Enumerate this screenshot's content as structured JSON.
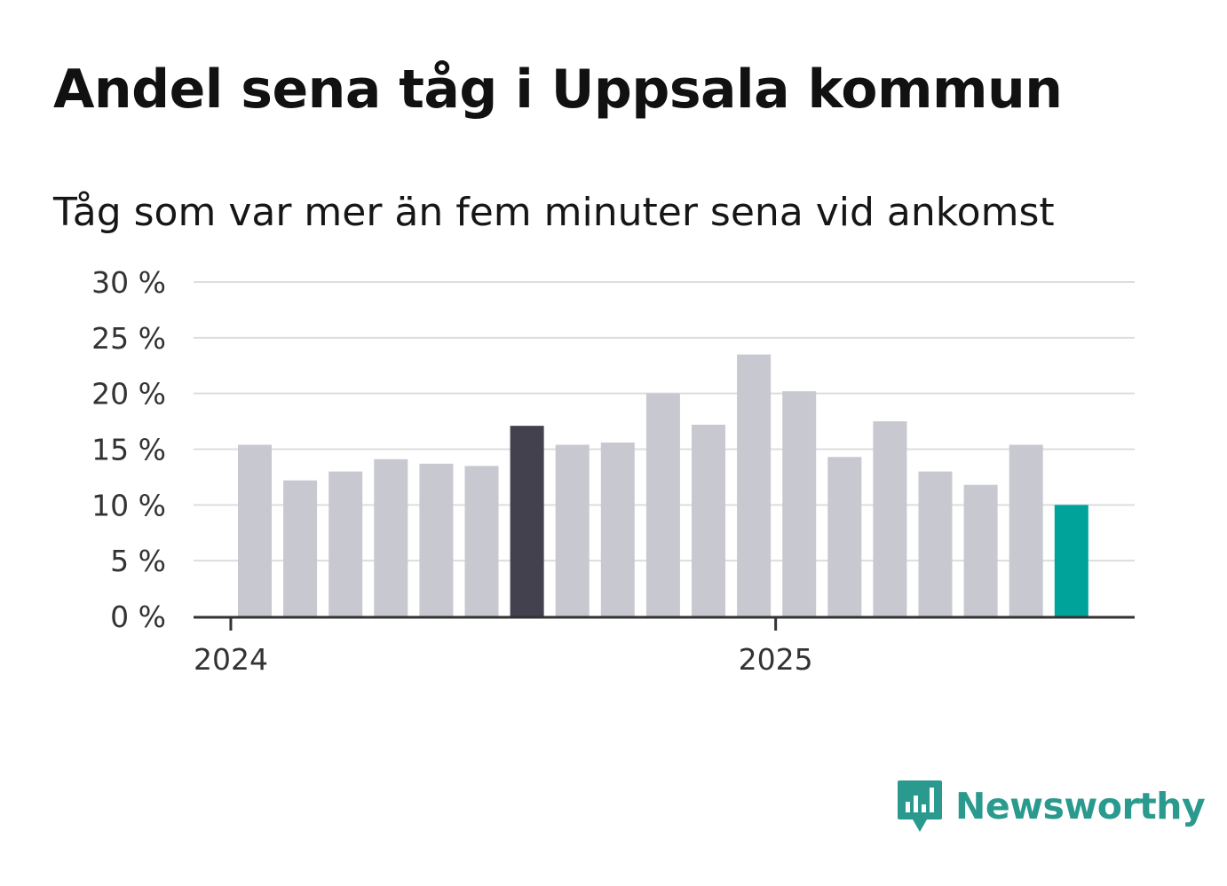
{
  "header": {
    "title": "Andel sena tåg i Uppsala kommun",
    "subtitle": "Tåg som var mer än fem minuter sena vid ankomst"
  },
  "brand": {
    "name": "Newsworthy",
    "color": "#2a9a8f",
    "icon": "chart-bubble-icon"
  },
  "colors": {
    "bar": "#c8c8d0",
    "highlight_previous_year": "#43414e",
    "highlight_latest": "#00a39a",
    "grid": "#dddddd",
    "axis": "#333333"
  },
  "chart_data": {
    "type": "bar",
    "x_ticks": [
      "2024",
      "2025"
    ],
    "y_ticks": [
      "0 %",
      "5 %",
      "10 %",
      "15 %",
      "20 %",
      "25 %",
      "30 %"
    ],
    "ylim": [
      0,
      30
    ],
    "grid": true,
    "categories": [
      "2024-01",
      "2024-02",
      "2024-03",
      "2024-04",
      "2024-05",
      "2024-06",
      "2024-07",
      "2024-08",
      "2024-09",
      "2024-10",
      "2024-11",
      "2024-12",
      "2025-01",
      "2025-02",
      "2025-03",
      "2025-04",
      "2025-05",
      "2025-06",
      "2025-07"
    ],
    "values": [
      15.4,
      12.2,
      13.0,
      14.1,
      13.7,
      13.5,
      17.1,
      15.4,
      15.6,
      20.0,
      17.2,
      23.5,
      20.2,
      14.3,
      17.5,
      13.0,
      11.8,
      15.4,
      10.0
    ],
    "highlight": {
      "2024-07": "highlight_previous_year",
      "2025-07": "highlight_latest"
    }
  }
}
